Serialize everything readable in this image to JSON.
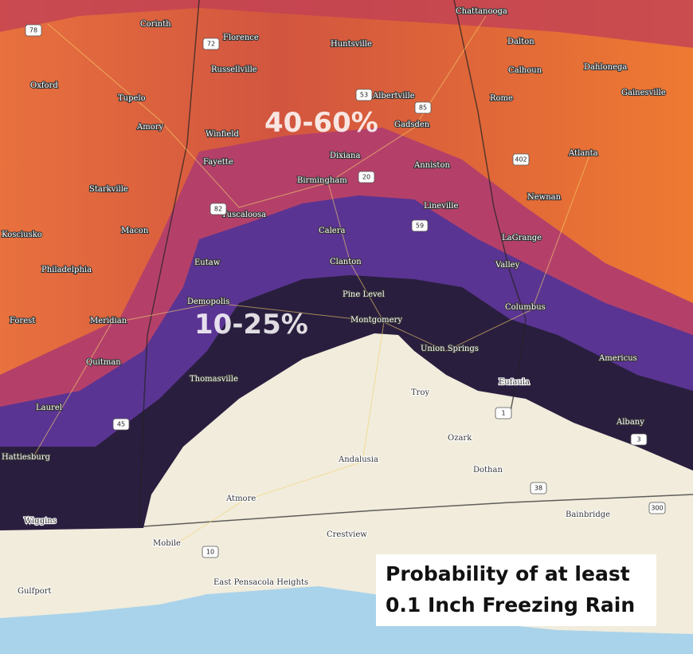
{
  "zone_labels": [
    "40-60%",
    "10-25%"
  ],
  "cities": [
    "Chattanooga",
    "Corinth",
    "Florence",
    "Huntsville",
    "Dalton",
    "Russellville",
    "Calhoun",
    "Dahlonega",
    "Oxford",
    "Tupelo",
    "Albertville",
    "Rome",
    "Gainesville",
    "Amory",
    "Gadsden",
    "Winfield",
    "Dixiana",
    "Anniston",
    "Atlanta",
    "Fayette",
    "Birmingham",
    "Starkville",
    "Newnan",
    "Lineville",
    "Tuscaloosa",
    "Macon",
    "Kosciusko",
    "Calera",
    "LaGrange",
    "Eutaw",
    "Clanton",
    "Valley",
    "Philadelphia",
    "Pine Level",
    "Demopolis",
    "Columbus",
    "Forest",
    "Meridian",
    "Montgomery",
    "Union Springs",
    "Americus",
    "Quitman",
    "Thomasville",
    "Eufaula",
    "Troy",
    "Laurel",
    "Albany",
    "Ozark",
    "Hattiesburg",
    "Andalusia",
    "Dothan",
    "Atmore",
    "Bainbridge",
    "Wiggins",
    "Crestview",
    "Mobile",
    "Gulfport",
    "East Pensacola Heights"
  ],
  "highways": [
    "78",
    "72",
    "53",
    "59",
    "20",
    "402",
    "82",
    "85",
    "1",
    "45",
    "38",
    "300",
    "10",
    "3"
  ],
  "caption": [
    "Probability of at least",
    "0.1 Inch Freezing Rain"
  ]
}
